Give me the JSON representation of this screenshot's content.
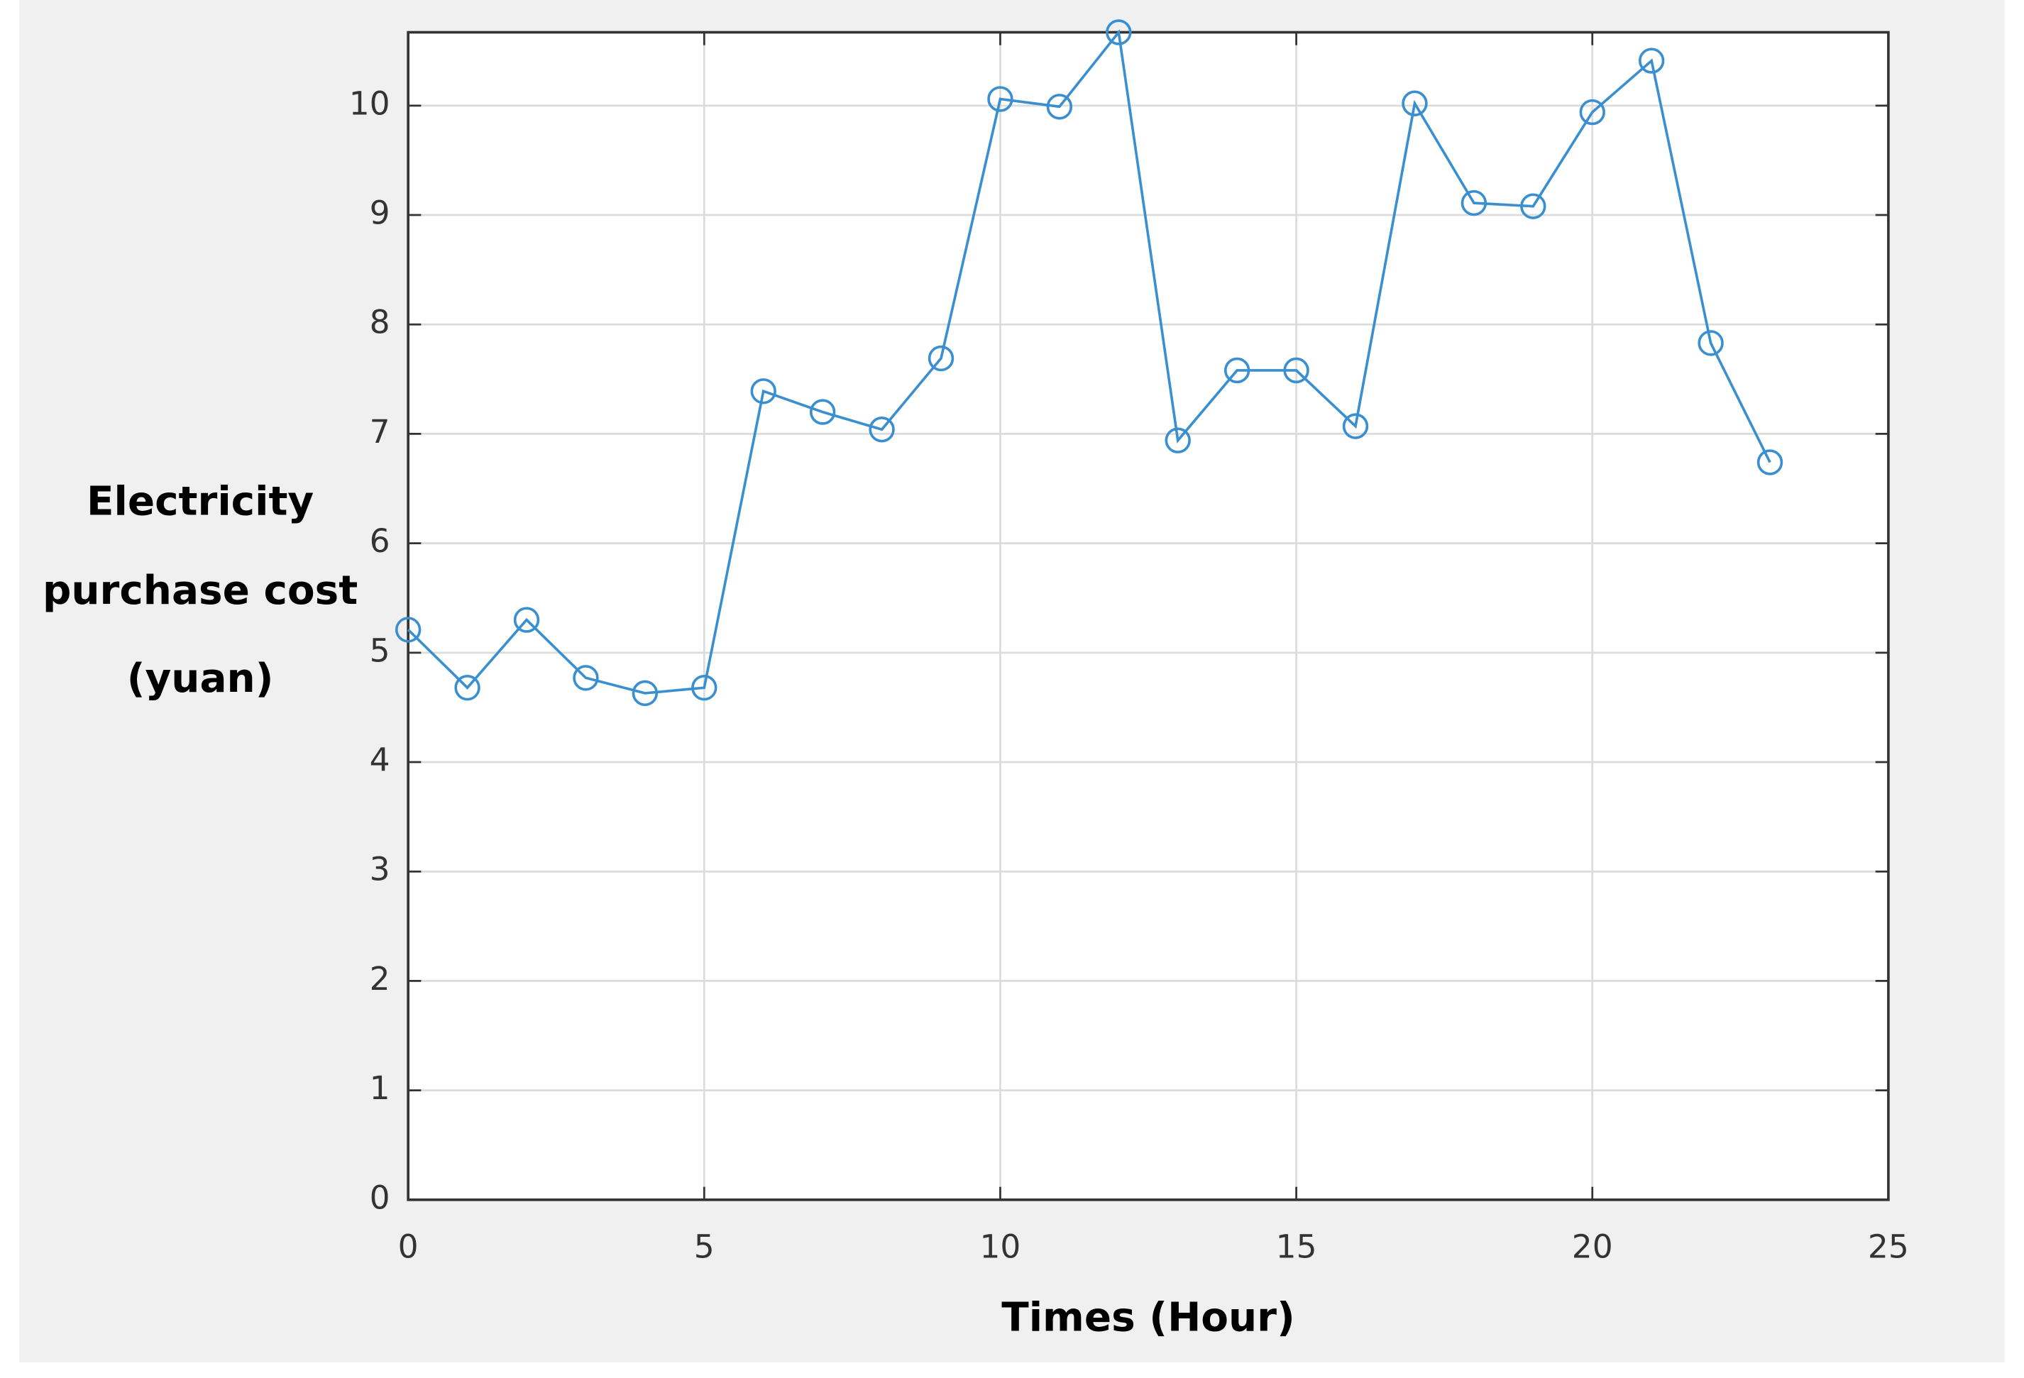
{
  "chart_data": {
    "type": "line",
    "xlabel": "Times  (Hour)",
    "ylabel": [
      "Electricity",
      "purchase cost",
      "(yuan)"
    ],
    "x": [
      0,
      1,
      2,
      3,
      4,
      5,
      6,
      7,
      8,
      9,
      10,
      11,
      12,
      13,
      14,
      15,
      16,
      17,
      18,
      19,
      20,
      21,
      22,
      23
    ],
    "series": [
      {
        "name": "Electricity purchase cost",
        "color": "#3a8fd0",
        "values": [
          5.21,
          4.68,
          5.3,
          4.77,
          4.63,
          4.68,
          7.39,
          7.2,
          7.04,
          7.69,
          10.06,
          9.99,
          10.67,
          6.94,
          7.58,
          7.58,
          7.07,
          10.02,
          9.11,
          9.08,
          9.94,
          10.41,
          7.83,
          6.74
        ]
      }
    ],
    "xlim": [
      0,
      25
    ],
    "xticks": [
      0,
      5,
      10,
      15,
      20,
      25
    ],
    "ylim": [
      0,
      10.67
    ],
    "yticks": [
      0,
      1,
      2,
      3,
      4,
      5,
      6,
      7,
      8,
      9,
      10
    ],
    "grid": true,
    "marker": "circle"
  }
}
